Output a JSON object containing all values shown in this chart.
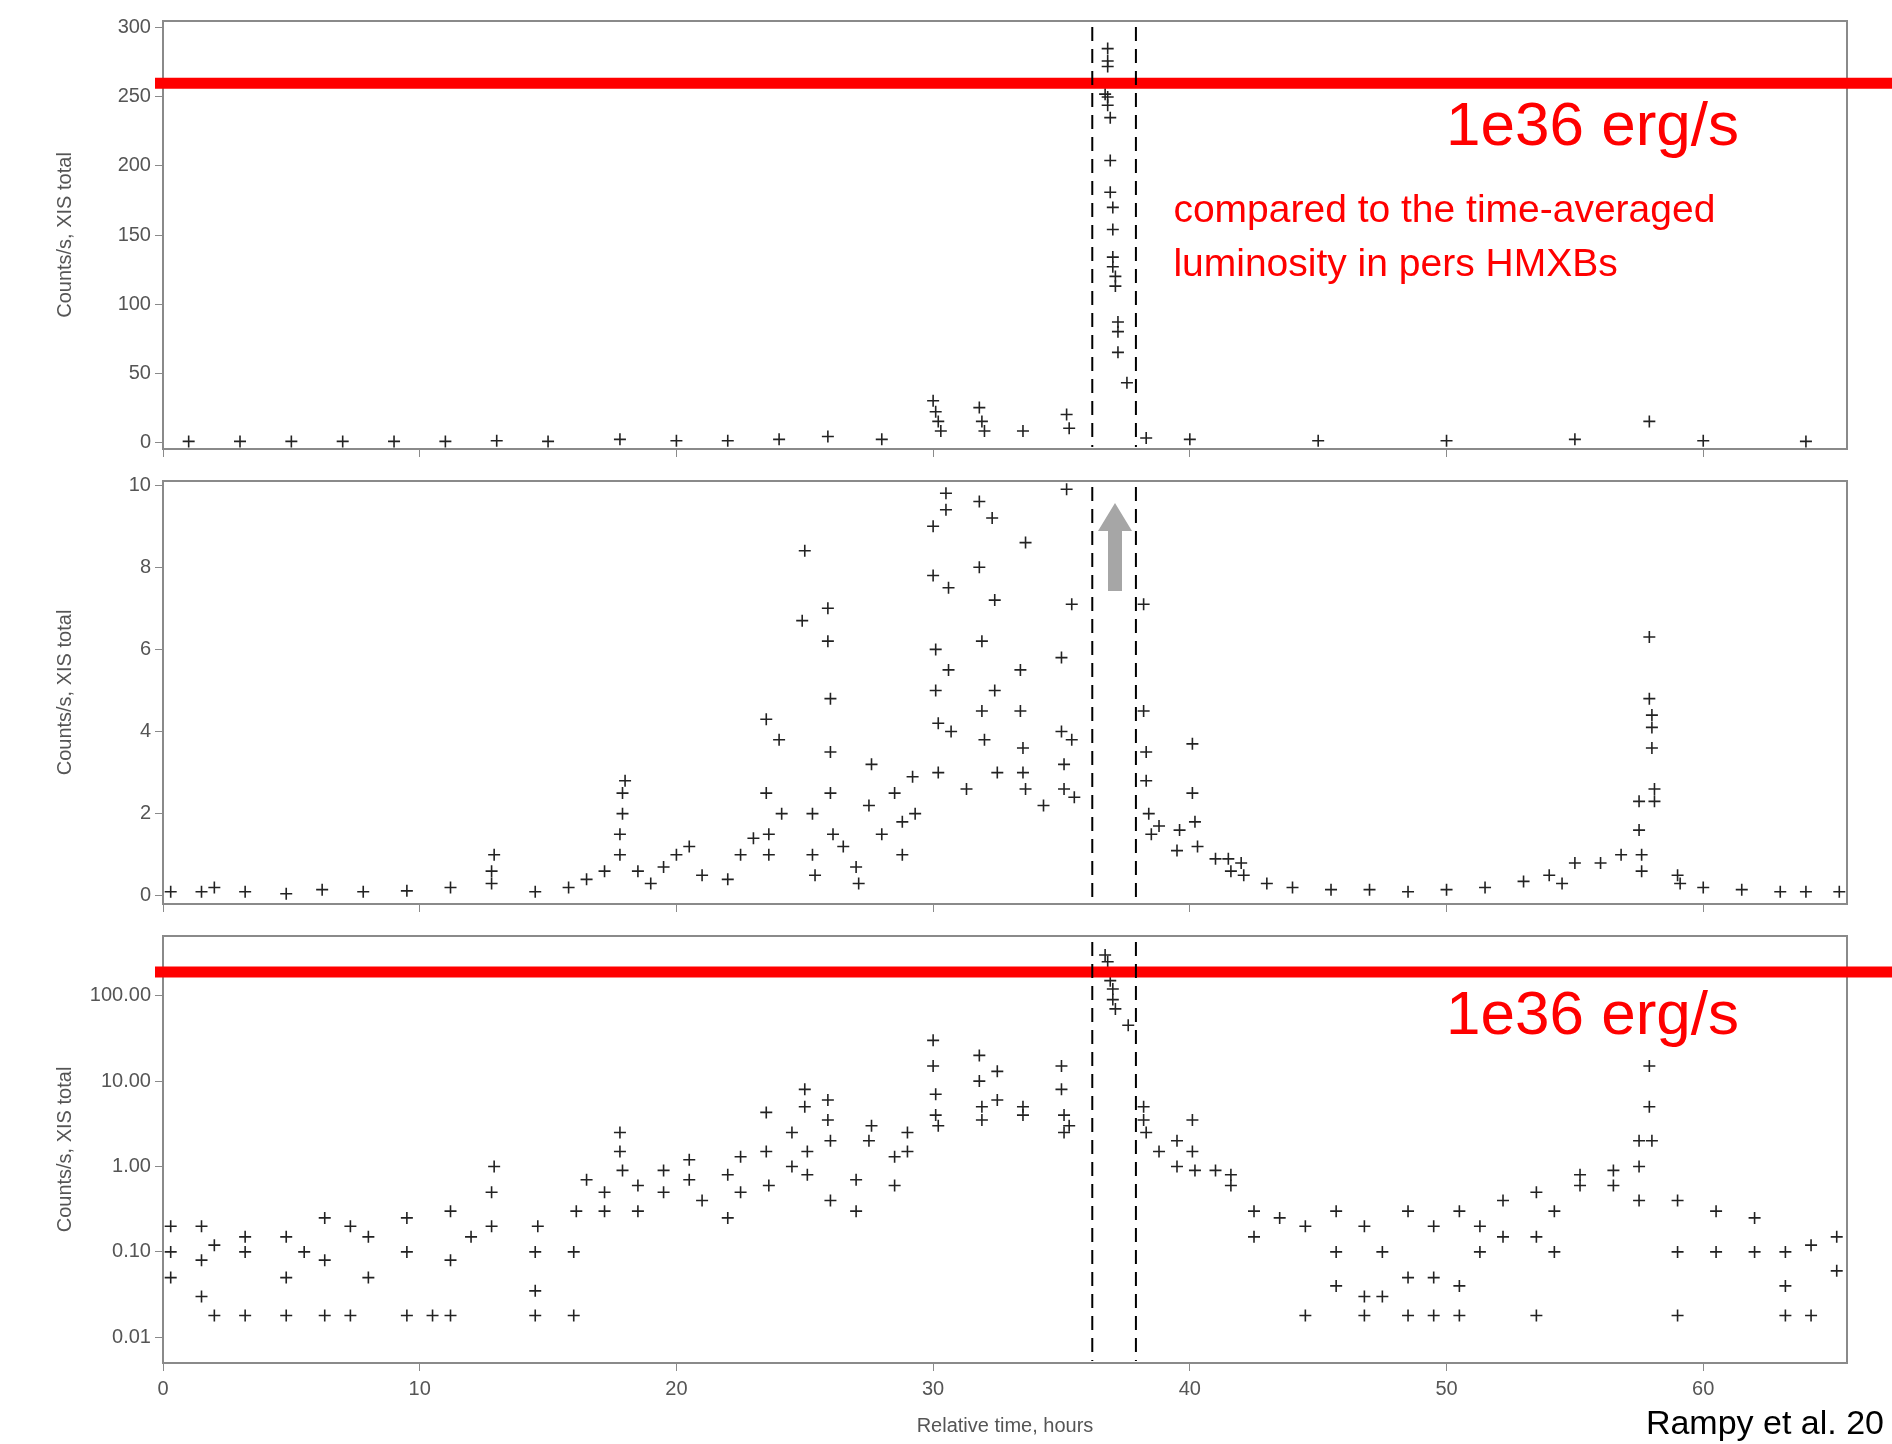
{
  "chart_data": [
    {
      "type": "scatter",
      "ylabel": "Counts/s, XIS total",
      "xlim": [
        0,
        65.6
      ],
      "xticks": [
        0,
        10,
        20,
        30,
        40,
        50,
        60
      ],
      "ylim": [
        -5,
        305
      ],
      "yticks": [
        0,
        50,
        100,
        150,
        200,
        250,
        300
      ],
      "tick_labels": "y",
      "marker": "cross",
      "grid": false,
      "series": [
        {
          "color": "#222222",
          "x": [
            1,
            3,
            5,
            7,
            9,
            11,
            13,
            15,
            17.8,
            20,
            22,
            24,
            25.9,
            28,
            30,
            30.1,
            30.2,
            30.3,
            31.8,
            31.9,
            32,
            33.5,
            35.2,
            35.3,
            36.8,
            36.8,
            36.8,
            36.7,
            36.8,
            36.8,
            36.9,
            36.9,
            36.9,
            37.0,
            37.0,
            37.0,
            37.0,
            37.1,
            37.1,
            37.2,
            37.2,
            37.2,
            37.55,
            38.3,
            40,
            45,
            50,
            55,
            57.9,
            60,
            64
          ],
          "values": [
            0.5,
            0.5,
            0.5,
            0.5,
            0.5,
            0.5,
            1,
            0.5,
            2,
            1,
            1,
            2,
            4,
            2,
            30,
            22,
            15,
            8,
            25,
            15,
            8,
            8,
            20,
            10,
            285,
            276,
            272,
            252,
            250,
            244,
            235,
            204,
            181,
            170,
            154,
            134,
            127,
            120,
            113,
            87,
            80,
            65,
            43,
            3,
            2,
            1,
            1,
            2,
            15,
            1,
            0.5
          ]
        }
      ],
      "ref_lines": [
        {
          "axis": "y",
          "value": 260,
          "label": "1e36 erg/s",
          "color": "#ff0000"
        },
        {
          "axis": "x",
          "value": 36.2,
          "color": "#000000",
          "line_style": "dashed"
        },
        {
          "axis": "x",
          "value": 37.9,
          "color": "#000000",
          "line_style": "dashed"
        }
      ],
      "annotations": [
        "compared to the time-averaged luminosity in pers HMXBs"
      ]
    },
    {
      "type": "scatter",
      "ylabel": "Counts/s, XIS total",
      "xlim": [
        0,
        65.6
      ],
      "xticks": [
        0,
        10,
        20,
        30,
        40,
        50,
        60
      ],
      "ylim": [
        -0.2,
        10.1
      ],
      "yticks": [
        0,
        2,
        4,
        6,
        8,
        10
      ],
      "tick_labels": "y",
      "marker": "cross",
      "grid": false,
      "series": [
        {
          "color": "#222222",
          "x": [
            0.3,
            1.5,
            2.0,
            3.2,
            4.8,
            6.2,
            7.8,
            9.5,
            11.2,
            12.8,
            12.8,
            12.9,
            14.5,
            15.8,
            16.5,
            17.2,
            17.8,
            17.8,
            17.9,
            17.9,
            18.0,
            18.5,
            19.0,
            19.5,
            20.0,
            20.5,
            21.0,
            22.0,
            22.5,
            23.0,
            23.5,
            23.5,
            23.6,
            23.6,
            24.0,
            24.1,
            24.9,
            25.0,
            25.3,
            25.3,
            25.4,
            25.9,
            25.9,
            26.0,
            26.0,
            26.0,
            26.1,
            26.5,
            27.0,
            27.1,
            27.5,
            27.6,
            28.0,
            28.5,
            28.8,
            28.8,
            29.2,
            29.3,
            30.0,
            30.0,
            30.1,
            30.1,
            30.2,
            30.2,
            30.5,
            30.5,
            30.6,
            30.6,
            30.7,
            31.3,
            31.8,
            31.8,
            31.9,
            31.9,
            32.0,
            32.3,
            32.4,
            32.4,
            32.5,
            33.4,
            33.4,
            33.5,
            33.5,
            33.6,
            33.6,
            34.3,
            35.0,
            35.0,
            35.1,
            35.1,
            35.2,
            35.4,
            35.4,
            35.5,
            38.2,
            38.2,
            38.3,
            38.3,
            38.4,
            38.5,
            38.8,
            39.5,
            39.6,
            40.1,
            40.1,
            40.2,
            40.3,
            41.0,
            41.5,
            41.6,
            42.0,
            42.1,
            43.0,
            44.0,
            45.5,
            47.0,
            48.5,
            50.0,
            51.5,
            53.0,
            54.0,
            54.5,
            55.0,
            56.0,
            56.8,
            57.5,
            57.5,
            57.6,
            57.6,
            57.9,
            57.9,
            58.0,
            58.0,
            58.0,
            58.1,
            58.1,
            59.0,
            59.1,
            60.0,
            61.5,
            63.0,
            64.0,
            65.3
          ],
          "values": [
            0.1,
            0.1,
            0.2,
            0.1,
            0.05,
            0.15,
            0.1,
            0.12,
            0.2,
            0.3,
            0.6,
            1.0,
            0.1,
            0.2,
            0.4,
            0.6,
            1.0,
            1.5,
            2.0,
            2.5,
            2.8,
            0.6,
            0.3,
            0.7,
            1.0,
            1.2,
            0.5,
            0.4,
            1.0,
            1.4,
            4.3,
            2.5,
            1.5,
            1.0,
            3.8,
            2.0,
            6.7,
            8.4,
            2.0,
            1.0,
            0.5,
            7.0,
            6.2,
            4.8,
            3.5,
            2.5,
            1.5,
            1.2,
            0.7,
            0.3,
            2.2,
            3.2,
            1.5,
            2.5,
            1.8,
            1.0,
            2.9,
            2.0,
            9.0,
            7.8,
            6.0,
            5.0,
            4.2,
            3.0,
            9.8,
            9.4,
            7.5,
            5.5,
            4.0,
            2.6,
            9.6,
            8.0,
            6.2,
            4.5,
            3.8,
            9.2,
            7.2,
            5.0,
            3.0,
            5.5,
            4.5,
            3.6,
            3.0,
            2.6,
            8.6,
            2.2,
            5.8,
            4.0,
            3.2,
            2.6,
            9.9,
            7.1,
            3.8,
            2.4,
            7.1,
            4.5,
            3.5,
            2.8,
            2.0,
            1.5,
            1.7,
            1.1,
            1.6,
            3.7,
            2.5,
            1.8,
            1.2,
            0.9,
            0.9,
            0.6,
            0.8,
            0.5,
            0.3,
            0.2,
            0.15,
            0.15,
            0.1,
            0.15,
            0.2,
            0.35,
            0.5,
            0.3,
            0.8,
            0.8,
            1.0,
            2.3,
            1.6,
            1.0,
            0.6,
            6.3,
            4.8,
            4.4,
            4.1,
            3.6,
            2.6,
            2.3,
            0.5,
            0.3,
            0.2,
            0.15,
            0.1,
            0.1,
            0.1
          ]
        }
      ],
      "ref_lines": [
        {
          "axis": "x",
          "value": 36.2,
          "color": "#000000",
          "line_style": "dashed"
        },
        {
          "axis": "x",
          "value": 37.9,
          "color": "#000000",
          "line_style": "dashed"
        }
      ]
    },
    {
      "type": "scatter",
      "xlabel": "Relative time, hours",
      "ylabel": "Counts/s, XIS total",
      "log": "y",
      "xlim": [
        0,
        65.6
      ],
      "xticks": [
        0,
        10,
        20,
        30,
        40,
        50,
        60
      ],
      "ylim": [
        0.005,
        500
      ],
      "yticks": [
        {
          "value": 0.01,
          "label": "0.01"
        },
        {
          "value": 0.1,
          "label": "0.10"
        },
        {
          "value": 1,
          "label": "1.00"
        },
        {
          "value": 10,
          "label": "10.00"
        },
        {
          "value": 100,
          "label": "100.00"
        }
      ],
      "marker": "cross",
      "grid": false,
      "series": [
        {
          "color": "#222222",
          "x": [
            0.3,
            0.3,
            0.3,
            1.5,
            1.5,
            1.5,
            2,
            2,
            3.2,
            3.2,
            3.2,
            4.8,
            4.8,
            4.8,
            5.5,
            6.3,
            6.3,
            6.3,
            7.3,
            7.3,
            8,
            8,
            9.5,
            9.5,
            9.5,
            10.5,
            11.2,
            11.2,
            11.2,
            12,
            12.8,
            12.8,
            12.9,
            14.5,
            14.5,
            14.5,
            14.6,
            16,
            16,
            16.1,
            16.5,
            17.2,
            17.2,
            17.8,
            17.8,
            17.9,
            18.5,
            18.5,
            19.5,
            19.5,
            20.5,
            20.5,
            21,
            22,
            22,
            22.5,
            22.5,
            23.5,
            23.5,
            23.6,
            24.5,
            24.5,
            25,
            25,
            25.1,
            25.1,
            25.9,
            25.9,
            26,
            26,
            27,
            27,
            27.5,
            27.6,
            28.5,
            28.5,
            29,
            29,
            30,
            30,
            30.1,
            30.1,
            30.2,
            31.8,
            31.8,
            31.9,
            31.9,
            32.5,
            32.5,
            33.5,
            33.5,
            35,
            35,
            35.1,
            35.1,
            35.3,
            36.7,
            36.8,
            36.9,
            37,
            37,
            37.1,
            37.6,
            38.2,
            38.2,
            38.3,
            38.8,
            39.5,
            39.5,
            40.1,
            40.1,
            40.2,
            41,
            41.6,
            41.6,
            42.5,
            42.5,
            43.5,
            44.5,
            44.5,
            45.7,
            45.7,
            45.7,
            46.8,
            46.8,
            46.8,
            47.5,
            47.5,
            48.5,
            48.5,
            48.5,
            49.5,
            49.5,
            49.5,
            50.5,
            50.5,
            50.5,
            51.3,
            51.3,
            52.2,
            52.2,
            53.5,
            53.5,
            53.5,
            54.2,
            54.2,
            55.2,
            55.2,
            56.5,
            56.5,
            57.5,
            57.5,
            57.5,
            57.9,
            57.9,
            58,
            59,
            59,
            59,
            60.5,
            60.5,
            62,
            62,
            63.2,
            63.2,
            63.2,
            64.2,
            64.2,
            65.2,
            65.2
          ],
          "values": [
            0.05,
            0.1,
            0.2,
            0.03,
            0.08,
            0.2,
            0.018,
            0.12,
            0.018,
            0.1,
            0.15,
            0.018,
            0.05,
            0.15,
            0.1,
            0.018,
            0.08,
            0.25,
            0.018,
            0.2,
            0.05,
            0.15,
            0.018,
            0.1,
            0.25,
            0.018,
            0.018,
            0.08,
            0.3,
            0.15,
            0.2,
            0.5,
            1.0,
            0.018,
            0.035,
            0.1,
            0.2,
            0.018,
            0.1,
            0.3,
            0.7,
            0.3,
            0.5,
            2.5,
            1.5,
            0.9,
            0.6,
            0.3,
            0.9,
            0.5,
            1.2,
            0.7,
            0.4,
            0.25,
            0.8,
            1.3,
            0.5,
            4.3,
            1.5,
            0.6,
            2.5,
            1.0,
            8,
            5,
            1.5,
            0.8,
            6,
            3.5,
            2,
            0.4,
            0.7,
            0.3,
            2,
            3,
            1.3,
            0.6,
            2.5,
            1.5,
            30,
            15,
            7,
            4,
            3,
            20,
            10,
            5,
            3.5,
            13,
            6,
            5,
            4,
            15,
            8,
            4,
            2.5,
            3,
            300,
            250,
            150,
            120,
            90,
            70,
            45,
            5,
            3.5,
            2.5,
            1.5,
            1,
            2,
            3.5,
            1.5,
            0.9,
            0.9,
            0.8,
            0.6,
            0.3,
            0.15,
            0.25,
            0.2,
            0.018,
            0.3,
            0.1,
            0.04,
            0.2,
            0.03,
            0.018,
            0.1,
            0.03,
            0.3,
            0.05,
            0.018,
            0.2,
            0.05,
            0.018,
            0.3,
            0.04,
            0.018,
            0.2,
            0.1,
            0.4,
            0.15,
            0.5,
            0.15,
            0.018,
            0.3,
            0.1,
            0.6,
            0.8,
            0.9,
            0.6,
            2,
            1,
            0.4,
            15,
            5,
            2,
            0.4,
            0.1,
            0.018,
            0.3,
            0.1,
            0.25,
            0.1,
            0.1,
            0.04,
            0.018,
            0.12,
            0.018,
            0.15,
            0.06
          ]
        }
      ],
      "ref_lines": [
        {
          "axis": "y",
          "value": 190,
          "label": "1e36 erg/s",
          "color": "#ff0000"
        },
        {
          "axis": "x",
          "value": 36.2,
          "color": "#000000",
          "line_style": "dashed"
        },
        {
          "axis": "x",
          "value": 37.9,
          "color": "#000000",
          "line_style": "dashed"
        }
      ],
      "annotations": [
        "Rampy et al. 20"
      ]
    }
  ]
}
